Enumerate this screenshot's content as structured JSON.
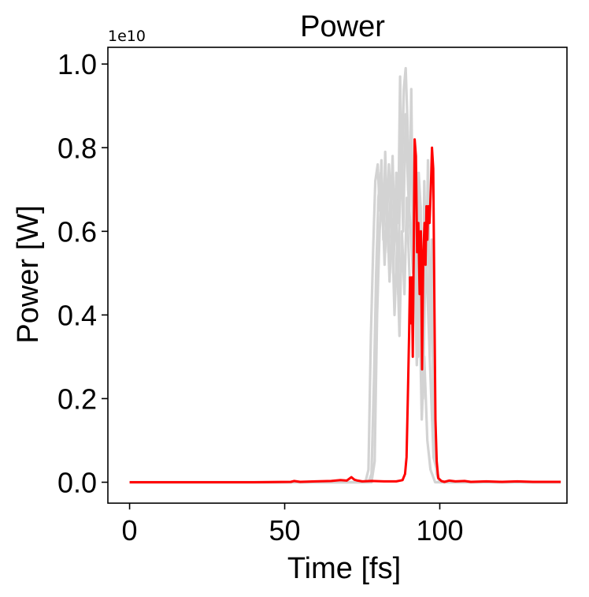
{
  "chart_data": {
    "type": "line",
    "title": "Power",
    "xlabel": "Time [fs]",
    "ylabel": "Power [W]",
    "y_offset_label": "1e10",
    "xlim": [
      -7,
      141
    ],
    "ylim": [
      -0.05,
      1.04
    ],
    "x_ticks": [
      0,
      50,
      100
    ],
    "x_tick_labels": [
      "0",
      "50",
      "100"
    ],
    "y_ticks": [
      0.0,
      0.2,
      0.4,
      0.6,
      0.8,
      1.0
    ],
    "y_tick_labels": [
      "0.0",
      "0.2",
      "0.4",
      "0.6",
      "0.8",
      "1.0"
    ],
    "grid": false,
    "colors": {
      "background_series": "#d3d3d3",
      "highlight_series": "#ff0000"
    },
    "series": [
      {
        "color": "#d3d3d3",
        "x": [
          0,
          60,
          76,
          77,
          77.8,
          78.5,
          79.2,
          80,
          80.6,
          81.2,
          81.8,
          82.4,
          83,
          83.6,
          84.2,
          84.8,
          85.4,
          86,
          86.6,
          87.2,
          87.8,
          88.4,
          89,
          89.6,
          90.2,
          90.8,
          91.4,
          92,
          92.6,
          93.2,
          93.8,
          94.4,
          95,
          95.6,
          96.2,
          96.8,
          97.4,
          98,
          99,
          100,
          101,
          139
        ],
        "values": [
          0,
          0,
          0,
          0.03,
          0.35,
          0.55,
          0.72,
          0.76,
          0.65,
          0.77,
          0.58,
          0.79,
          0.62,
          0.76,
          0.66,
          0.78,
          0.58,
          0.74,
          0.62,
          0.97,
          0.72,
          0.94,
          0.99,
          0.86,
          0.65,
          0.94,
          0.55,
          0.77,
          0.35,
          0.74,
          0.66,
          0.2,
          0.72,
          0.48,
          0.77,
          0.3,
          0.58,
          0.12,
          0.02,
          0,
          0,
          0
        ]
      },
      {
        "color": "#d3d3d3",
        "x": [
          0,
          60,
          77,
          78,
          78.8,
          79.5,
          80.2,
          81,
          81.8,
          82.6,
          83.4,
          84.2,
          85,
          85.8,
          86.6,
          87.4,
          88.2,
          89,
          89.8,
          90.6,
          91.4,
          92.2,
          93,
          93.8,
          94.6,
          95.4,
          96.2,
          97,
          98,
          100,
          139
        ],
        "values": [
          0,
          0,
          0,
          0.02,
          0.25,
          0.5,
          0.68,
          0.74,
          0.6,
          0.72,
          0.55,
          0.7,
          0.5,
          0.68,
          0.45,
          0.82,
          0.6,
          0.88,
          0.7,
          0.6,
          0.5,
          0.72,
          0.3,
          0.66,
          0.2,
          0.55,
          0.42,
          0.25,
          0.06,
          0,
          0
        ]
      },
      {
        "color": "#d3d3d3",
        "x": [
          0,
          60,
          78,
          79,
          79.8,
          80.6,
          81.4,
          82.2,
          83,
          83.8,
          84.6,
          85.4,
          86.2,
          87,
          87.8,
          88.6,
          89.4,
          90.2,
          91,
          91.8,
          92.6,
          93.4,
          94.2,
          95,
          96,
          97,
          98.5,
          139
        ],
        "values": [
          0,
          0,
          0,
          0.05,
          0.4,
          0.6,
          0.7,
          0.52,
          0.66,
          0.48,
          0.62,
          0.4,
          0.56,
          0.35,
          0.6,
          0.45,
          0.68,
          0.5,
          0.38,
          0.55,
          0.28,
          0.45,
          0.15,
          0.3,
          0.1,
          0.03,
          0,
          0
        ]
      },
      {
        "color": "#ff0000",
        "x": [
          0,
          20,
          40,
          52,
          53,
          55,
          60,
          65,
          68,
          70,
          71.5,
          72.5,
          73.5,
          75,
          78,
          82,
          86,
          88,
          88.8,
          89.3,
          89.7,
          90.1,
          90.4,
          90.7,
          91,
          91.3,
          91.6,
          91.9,
          92.3,
          92.7,
          93.1,
          93.5,
          93.9,
          94.3,
          94.7,
          95.1,
          95.4,
          95.7,
          96,
          96.3,
          96.7,
          97.1,
          97.5,
          97.9,
          98.3,
          98.6,
          99,
          99.5,
          100.5,
          101.5,
          103,
          105,
          108,
          110,
          115,
          120,
          125,
          130,
          135,
          139
        ],
        "values": [
          0,
          0,
          0,
          0.001,
          0.003,
          0.001,
          0.002,
          0.003,
          0.005,
          0.004,
          0.012,
          0.006,
          0.004,
          0.002,
          0.003,
          0.002,
          0.002,
          0.005,
          0.02,
          0.06,
          0.2,
          0.35,
          0.49,
          0.38,
          0.49,
          0.3,
          0.55,
          0.82,
          0.78,
          0.55,
          0.62,
          0.45,
          0.6,
          0.27,
          0.55,
          0.62,
          0.52,
          0.66,
          0.58,
          0.66,
          0.62,
          0.7,
          0.8,
          0.75,
          0.4,
          0.15,
          0.05,
          0.01,
          0.003,
          0.001,
          0.004,
          0.002,
          0.003,
          0.001,
          0.002,
          0.001,
          0.002,
          0.001,
          0.001,
          0.001
        ]
      }
    ]
  }
}
